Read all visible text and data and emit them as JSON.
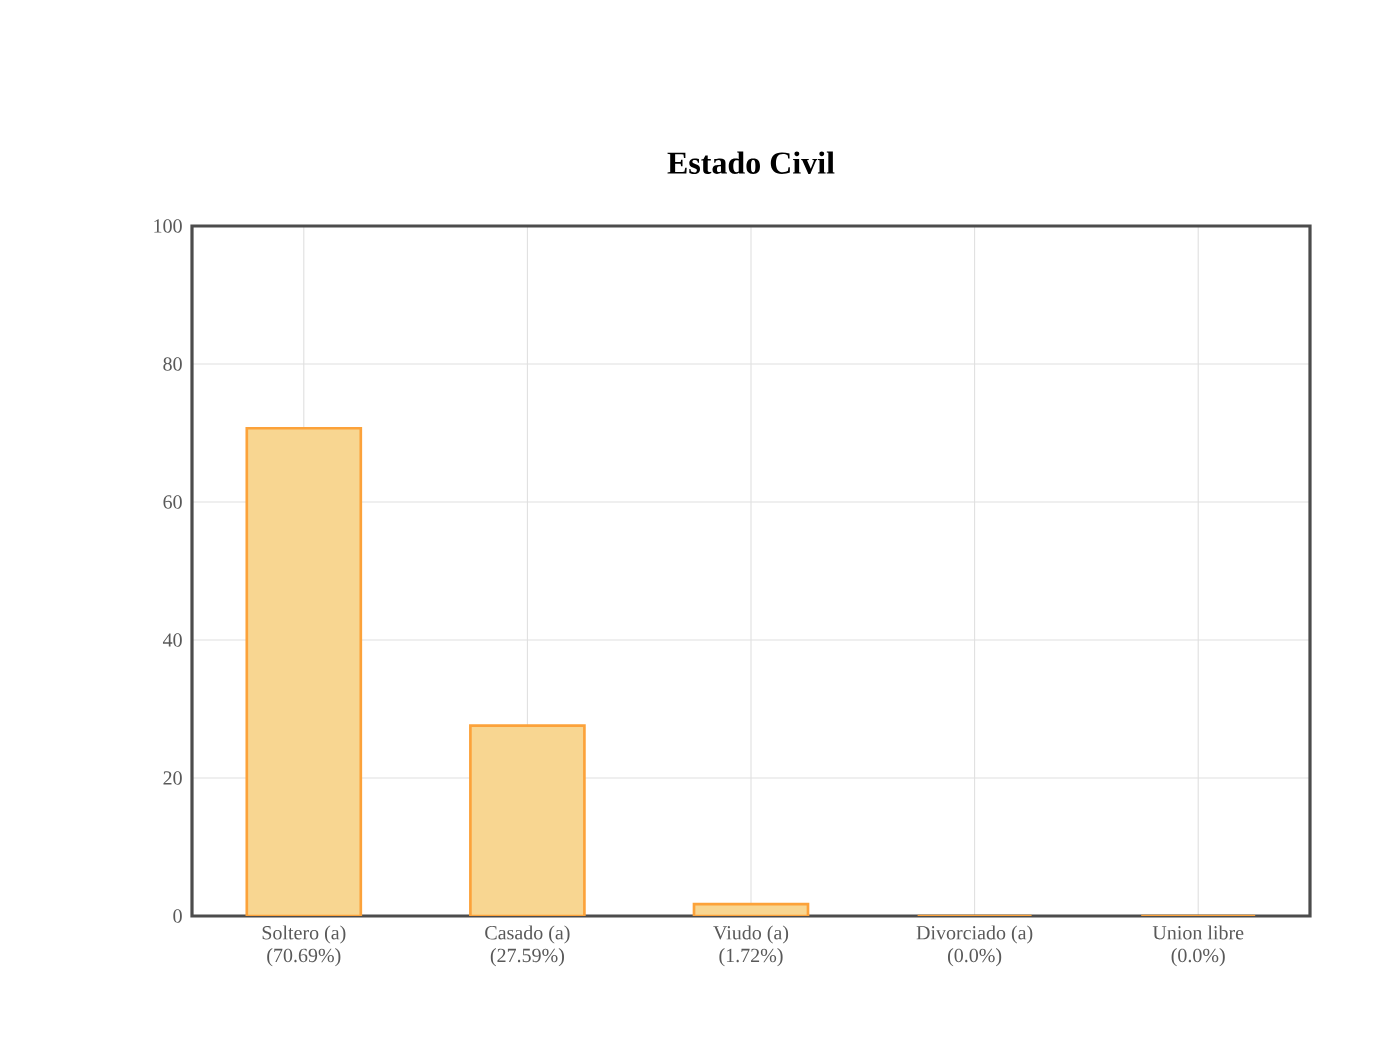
{
  "chart_data": {
    "type": "bar",
    "title": "Estado Civil",
    "categories": [
      "Soltero (a)",
      "Casado (a)",
      "Viudo (a)",
      "Divorciado (a)",
      "Union libre"
    ],
    "values": [
      70.69,
      27.59,
      1.72,
      0,
      0
    ],
    "value_labels": [
      "(70.69%)",
      "(27.59%)",
      "(1.72%)",
      "(0.0%)",
      "(0.0%)"
    ],
    "color": "#f8d691",
    "ylim": [
      0,
      100
    ],
    "yticks": [
      0,
      20,
      40,
      60,
      80,
      100
    ],
    "grid": true
  }
}
